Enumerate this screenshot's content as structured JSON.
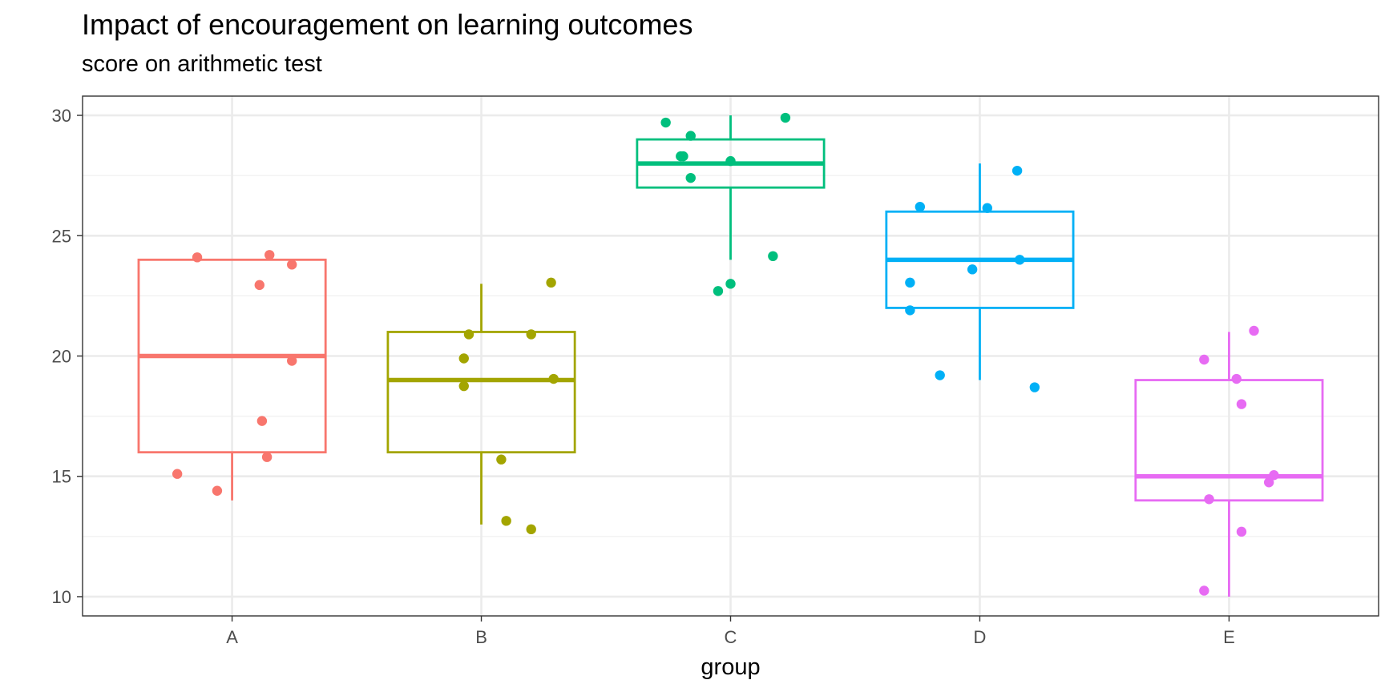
{
  "chart_data": {
    "type": "boxplot",
    "title": "Impact of encouragement on learning outcomes",
    "subtitle": "score on arithmetic test",
    "xlabel": "group",
    "ylabel": "",
    "ylim": [
      9.2,
      30.8
    ],
    "yticks": [
      10,
      15,
      20,
      25,
      30
    ],
    "grid": true,
    "legend": "none",
    "categories": [
      "A",
      "B",
      "C",
      "D",
      "E"
    ],
    "boxes": [
      {
        "group": "A",
        "color": "#F8766D",
        "whisker_low": 14,
        "q1": 16,
        "median": 20,
        "q3": 24,
        "whisker_high": 24
      },
      {
        "group": "B",
        "color": "#A3A500",
        "whisker_low": 13,
        "q1": 16,
        "median": 19,
        "q3": 21,
        "whisker_high": 23
      },
      {
        "group": "C",
        "color": "#00BF7D",
        "whisker_low": 24,
        "q1": 27,
        "median": 28,
        "q3": 29,
        "whisker_high": 30
      },
      {
        "group": "D",
        "color": "#00B0F6",
        "whisker_low": 19,
        "q1": 22,
        "median": 24,
        "q3": 26,
        "whisker_high": 28
      },
      {
        "group": "E",
        "color": "#E76BF3",
        "whisker_low": 10,
        "q1": 14,
        "median": 15,
        "q3": 19,
        "whisker_high": 21
      }
    ],
    "points": [
      {
        "group": "A",
        "x": 0.86,
        "y": 24.1
      },
      {
        "group": "A",
        "x": 1.15,
        "y": 24.2
      },
      {
        "group": "A",
        "x": 1.24,
        "y": 23.8
      },
      {
        "group": "A",
        "x": 1.11,
        "y": 22.95
      },
      {
        "group": "A",
        "x": 1.24,
        "y": 19.8
      },
      {
        "group": "A",
        "x": 1.12,
        "y": 17.3
      },
      {
        "group": "A",
        "x": 1.14,
        "y": 15.8
      },
      {
        "group": "A",
        "x": 0.78,
        "y": 15.1
      },
      {
        "group": "A",
        "x": 0.94,
        "y": 14.4
      },
      {
        "group": "B",
        "x": 2.28,
        "y": 23.05
      },
      {
        "group": "B",
        "x": 1.95,
        "y": 20.9
      },
      {
        "group": "B",
        "x": 2.2,
        "y": 20.9
      },
      {
        "group": "B",
        "x": 1.93,
        "y": 19.9
      },
      {
        "group": "B",
        "x": 2.29,
        "y": 19.05
      },
      {
        "group": "B",
        "x": 1.93,
        "y": 18.75
      },
      {
        "group": "B",
        "x": 2.08,
        "y": 15.7
      },
      {
        "group": "B",
        "x": 2.1,
        "y": 13.15
      },
      {
        "group": "B",
        "x": 2.2,
        "y": 12.8
      },
      {
        "group": "C",
        "x": 3.22,
        "y": 29.9
      },
      {
        "group": "C",
        "x": 2.74,
        "y": 29.7
      },
      {
        "group": "C",
        "x": 2.84,
        "y": 29.15
      },
      {
        "group": "C",
        "x": 2.8,
        "y": 28.3
      },
      {
        "group": "C",
        "x": 2.81,
        "y": 28.3
      },
      {
        "group": "C",
        "x": 3.0,
        "y": 28.1
      },
      {
        "group": "C",
        "x": 2.84,
        "y": 27.4
      },
      {
        "group": "C",
        "x": 3.17,
        "y": 24.15
      },
      {
        "group": "C",
        "x": 3.0,
        "y": 23.0
      },
      {
        "group": "C",
        "x": 2.95,
        "y": 22.7
      },
      {
        "group": "D",
        "x": 4.15,
        "y": 27.7
      },
      {
        "group": "D",
        "x": 3.76,
        "y": 26.2
      },
      {
        "group": "D",
        "x": 4.03,
        "y": 26.15
      },
      {
        "group": "D",
        "x": 4.16,
        "y": 24.0
      },
      {
        "group": "D",
        "x": 3.97,
        "y": 23.6
      },
      {
        "group": "D",
        "x": 3.72,
        "y": 23.05
      },
      {
        "group": "D",
        "x": 3.72,
        "y": 21.9
      },
      {
        "group": "D",
        "x": 3.84,
        "y": 19.2
      },
      {
        "group": "D",
        "x": 4.22,
        "y": 18.7
      },
      {
        "group": "E",
        "x": 5.1,
        "y": 21.05
      },
      {
        "group": "E",
        "x": 4.9,
        "y": 19.85
      },
      {
        "group": "E",
        "x": 5.03,
        "y": 19.05
      },
      {
        "group": "E",
        "x": 5.05,
        "y": 18.0
      },
      {
        "group": "E",
        "x": 5.18,
        "y": 15.05
      },
      {
        "group": "E",
        "x": 5.16,
        "y": 14.75
      },
      {
        "group": "E",
        "x": 4.92,
        "y": 14.05
      },
      {
        "group": "E",
        "x": 5.05,
        "y": 12.7
      },
      {
        "group": "E",
        "x": 4.9,
        "y": 10.25
      }
    ]
  }
}
